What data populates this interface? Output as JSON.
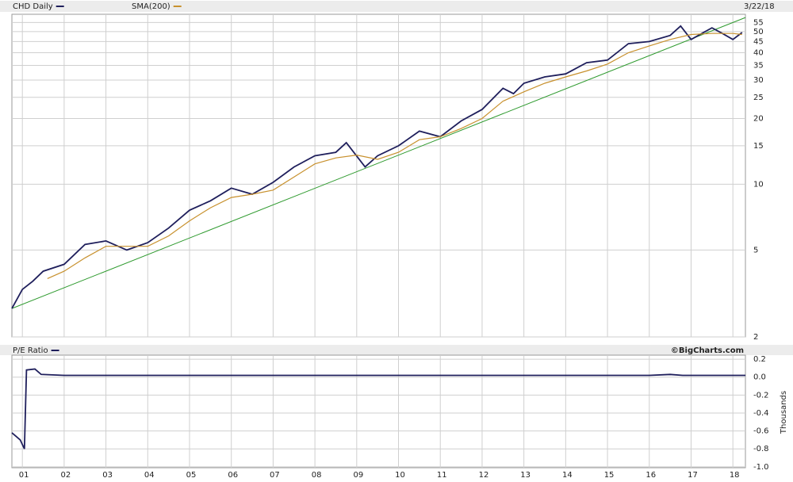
{
  "chart_data": [
    {
      "type": "line",
      "log_scale": true,
      "grid": true,
      "date_label": "3/22/18",
      "ylim": [
        2,
        60
      ],
      "yticks": [
        2,
        5,
        10,
        15,
        20,
        25,
        30,
        35,
        40,
        45,
        50,
        55
      ],
      "series": [
        {
          "name": "CHD Daily",
          "color": "#1f1f5c",
          "x": [
            2000.75,
            2001.0,
            2001.25,
            2001.5,
            2002.0,
            2002.5,
            2003.0,
            2003.5,
            2004.0,
            2004.5,
            2005.0,
            2005.5,
            2006.0,
            2006.5,
            2007.0,
            2007.5,
            2008.0,
            2008.5,
            2008.75,
            2009.2,
            2009.5,
            2010.0,
            2010.5,
            2011.0,
            2011.5,
            2012.0,
            2012.5,
            2012.75,
            2013.0,
            2013.5,
            2014.0,
            2014.5,
            2015.0,
            2015.5,
            2016.0,
            2016.5,
            2016.75,
            2017.0,
            2017.5,
            2017.75,
            2018.0,
            2018.22
          ],
          "values": [
            2.7,
            3.3,
            3.6,
            4.0,
            4.3,
            5.3,
            5.5,
            5.0,
            5.4,
            6.3,
            7.6,
            8.4,
            9.6,
            9.0,
            10.2,
            12.0,
            13.5,
            14.0,
            15.5,
            12.0,
            13.5,
            15.0,
            17.5,
            16.5,
            19.5,
            22.0,
            27.5,
            26.0,
            29.0,
            31.0,
            32.0,
            36.0,
            37.0,
            44.0,
            45.0,
            48.0,
            53.0,
            46.0,
            52.0,
            49.0,
            46.0,
            49.5
          ]
        },
        {
          "name": "SMA(200)",
          "color": "#c8912e",
          "x": [
            2001.6,
            2002.0,
            2002.5,
            2003.0,
            2003.5,
            2004.0,
            2004.5,
            2005.0,
            2005.5,
            2006.0,
            2006.5,
            2007.0,
            2007.5,
            2008.0,
            2008.5,
            2009.0,
            2009.5,
            2010.0,
            2010.5,
            2011.0,
            2011.5,
            2012.0,
            2012.5,
            2013.0,
            2013.5,
            2014.0,
            2014.5,
            2015.0,
            2015.5,
            2016.0,
            2016.5,
            2017.0,
            2017.5,
            2018.0,
            2018.22
          ],
          "values": [
            3.7,
            4.0,
            4.6,
            5.2,
            5.2,
            5.2,
            5.8,
            6.8,
            7.8,
            8.7,
            9.0,
            9.4,
            10.8,
            12.4,
            13.2,
            13.6,
            13.0,
            14.0,
            16.0,
            16.5,
            18.0,
            20.0,
            24.0,
            26.5,
            29.0,
            31.0,
            33.0,
            35.5,
            40.0,
            43.0,
            46.0,
            48.5,
            49.0,
            49.0,
            48.5
          ]
        }
      ],
      "trendline": {
        "color": "#2e9a2e",
        "x": [
          2000.75,
          2018.3
        ],
        "values": [
          2.7,
          58.0
        ]
      }
    },
    {
      "type": "line",
      "grid": true,
      "y_label": "Thousands",
      "source": "©BigCharts.com",
      "xlim": [
        2000.75,
        2018.3
      ],
      "xticks": [
        {
          "value": 2001,
          "label": "01"
        },
        {
          "value": 2002,
          "label": "02"
        },
        {
          "value": 2003,
          "label": "03"
        },
        {
          "value": 2004,
          "label": "04"
        },
        {
          "value": 2005,
          "label": "05"
        },
        {
          "value": 2006,
          "label": "06"
        },
        {
          "value": 2007,
          "label": "07"
        },
        {
          "value": 2008,
          "label": "08"
        },
        {
          "value": 2009,
          "label": "09"
        },
        {
          "value": 2010,
          "label": "10"
        },
        {
          "value": 2011,
          "label": "11"
        },
        {
          "value": 2012,
          "label": "12"
        },
        {
          "value": 2013,
          "label": "13"
        },
        {
          "value": 2014,
          "label": "14"
        },
        {
          "value": 2015,
          "label": "15"
        },
        {
          "value": 2016,
          "label": "16"
        },
        {
          "value": 2017,
          "label": "17"
        },
        {
          "value": 2018,
          "label": "18"
        }
      ],
      "ylim": [
        -1.01,
        0.245
      ],
      "yticks": [
        {
          "value": 0.2,
          "label": "0.2"
        },
        {
          "value": 0.0,
          "label": "0.0"
        },
        {
          "value": -0.2,
          "label": "-0.2"
        },
        {
          "value": -0.4,
          "label": "-0.4"
        },
        {
          "value": -0.6,
          "label": "-0.6"
        },
        {
          "value": -0.8,
          "label": "-0.8"
        },
        {
          "value": -1.0,
          "label": "-1.0"
        }
      ],
      "series": [
        {
          "name": "P/E Ratio",
          "color": "#1f1f5c",
          "x": [
            2000.75,
            2000.85,
            2000.95,
            2001.05,
            2001.1,
            2001.3,
            2001.45,
            2002.0,
            2004.0,
            2006.0,
            2008.0,
            2010.0,
            2012.0,
            2014.0,
            2016.0,
            2016.5,
            2016.8,
            2018.3
          ],
          "values": [
            -0.62,
            -0.66,
            -0.7,
            -0.8,
            0.08,
            0.09,
            0.03,
            0.02,
            0.02,
            0.02,
            0.02,
            0.02,
            0.02,
            0.02,
            0.02,
            0.03,
            0.02,
            0.02
          ]
        }
      ]
    }
  ]
}
